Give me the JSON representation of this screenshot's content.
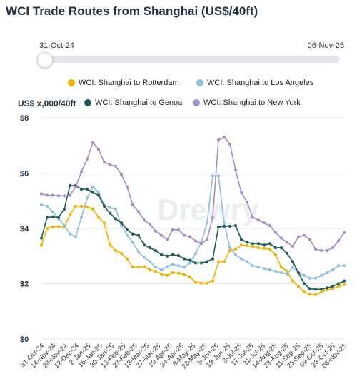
{
  "title": "WCI Trade Routes from Shanghai (US$/40ft)",
  "range_slider": {
    "start_label": "31-Oct-24",
    "end_label": "06-Nov-25"
  },
  "watermark": "Drewry",
  "chart_data": {
    "type": "line",
    "ylabel": "US$ x,000/40ft",
    "ylim": [
      0,
      8
    ],
    "yticks": [
      "$0",
      "$2",
      "$4",
      "$6",
      "$8"
    ],
    "grid": true,
    "legend_position": "top",
    "x": [
      "31-Oct-24",
      "07-Nov-24",
      "14-Nov-24",
      "21-Nov-24",
      "28-Nov-24",
      "05-Dec-24",
      "12-Dec-24",
      "19-Dec-24",
      "26-Dec-24",
      "02-Jan-25",
      "09-Jan-25",
      "16-Jan-25",
      "23-Jan-25",
      "30-Jan-25",
      "06-Feb-25",
      "13-Feb-25",
      "20-Feb-25",
      "27-Feb-25",
      "06-Mar-25",
      "13-Mar-25",
      "20-Mar-25",
      "27-Mar-25",
      "03-Apr-25",
      "10-Apr-25",
      "17-Apr-25",
      "24-Apr-25",
      "01-May-25",
      "08-May-25",
      "15-May-25",
      "22-May-25",
      "29-May-25",
      "05-Jun-25",
      "12-Jun-25",
      "19-Jun-25",
      "26-Jun-25",
      "03-Jul-25",
      "10-Jul-25",
      "17-Jul-25",
      "24-Jul-25",
      "31-Jul-25",
      "07-Aug-25",
      "14-Aug-25",
      "21-Aug-25",
      "28-Aug-25",
      "04-Sep-25",
      "11-Sep-25",
      "18-Sep-25",
      "25-Sep-25",
      "02-Oct-25",
      "09-Oct-25",
      "16-Oct-25",
      "23-Oct-25",
      "30-Oct-25",
      "06-Nov-25"
    ],
    "x_tick_labels": [
      "31-Oct-24",
      "14-Nov-24",
      "28-Nov-24",
      "12-Dec-24",
      "2-Jan-25",
      "16-Jan-25",
      "30-Jan-25",
      "13-Feb-25",
      "27-Feb-25",
      "13-Mar-25",
      "27-Mar-25",
      "10-Apr-25",
      "24-Apr-25",
      "8-May-25",
      "22-May-25",
      "5-Jun-25",
      "19-Jun-25",
      "3-Jul-25",
      "17-Jul-25",
      "31-Jul-25",
      "14-Aug-25",
      "28-Aug-25",
      "11-Sep-25",
      "25-Sep-25",
      "09-Oct-25",
      "23-Oct-25",
      "06-Nov-25"
    ],
    "series": [
      {
        "name": "WCI: Shanghai to Rotterdam",
        "color": "#f0b400",
        "values": [
          3.4,
          4.0,
          4.05,
          4.07,
          4.05,
          4.5,
          4.8,
          4.8,
          4.78,
          4.7,
          4.4,
          4.2,
          3.4,
          3.2,
          3.1,
          2.9,
          2.6,
          2.6,
          2.62,
          2.5,
          2.45,
          2.35,
          2.3,
          2.4,
          2.38,
          2.33,
          2.25,
          2.05,
          2.02,
          2.02,
          2.1,
          2.8,
          2.8,
          3.2,
          3.25,
          3.4,
          3.38,
          3.35,
          3.3,
          3.28,
          3.25,
          3.05,
          2.6,
          2.45,
          2.1,
          1.9,
          1.7,
          1.62,
          1.6,
          1.7,
          1.78,
          1.82,
          1.9,
          1.97
        ]
      },
      {
        "name": "WCI: Shanghai to Los Angeles",
        "color": "#8fbfdc",
        "values": [
          4.85,
          4.8,
          4.6,
          4.35,
          4.1,
          3.8,
          3.7,
          4.4,
          5.1,
          5.5,
          5.3,
          4.85,
          4.75,
          4.7,
          4.1,
          3.75,
          3.5,
          3.15,
          2.95,
          2.8,
          2.6,
          2.5,
          2.62,
          2.7,
          2.65,
          2.6,
          2.75,
          3.1,
          3.5,
          4.2,
          5.9,
          5.9,
          4.2,
          3.3,
          3.05,
          2.9,
          2.8,
          2.65,
          2.6,
          2.55,
          2.5,
          2.45,
          2.4,
          2.35,
          2.6,
          2.4,
          2.3,
          2.2,
          2.2,
          2.3,
          2.4,
          2.5,
          2.65,
          2.65
        ]
      },
      {
        "name": "WCI: Shanghai to Genoa",
        "color": "#1e5c5a",
        "values": [
          3.65,
          4.4,
          4.42,
          4.4,
          4.7,
          5.55,
          5.55,
          5.42,
          5.42,
          5.3,
          5.2,
          4.8,
          4.55,
          4.35,
          4.2,
          3.95,
          3.8,
          3.75,
          3.4,
          3.3,
          3.2,
          3.05,
          3.0,
          3.05,
          3.02,
          2.9,
          2.85,
          2.75,
          2.75,
          2.8,
          2.9,
          4.05,
          4.08,
          4.08,
          4.1,
          3.6,
          3.5,
          3.45,
          3.45,
          3.4,
          3.45,
          3.3,
          3.3,
          3.1,
          2.8,
          2.4,
          2.0,
          1.82,
          1.8,
          1.8,
          1.85,
          1.9,
          2.0,
          2.1
        ]
      },
      {
        "name": "WCI: Shanghai to New York",
        "color": "#a58dc7",
        "values": [
          5.25,
          5.2,
          5.2,
          5.18,
          5.18,
          5.2,
          5.5,
          6.05,
          6.5,
          7.1,
          6.85,
          6.4,
          6.3,
          6.25,
          5.95,
          5.5,
          4.85,
          4.6,
          4.3,
          4.15,
          3.9,
          3.75,
          3.6,
          3.95,
          3.95,
          3.75,
          3.7,
          3.55,
          3.45,
          3.6,
          4.4,
          7.2,
          7.3,
          7.05,
          6.1,
          5.3,
          4.95,
          4.4,
          4.3,
          4.2,
          4.1,
          3.85,
          3.65,
          3.5,
          3.35,
          3.7,
          3.75,
          3.6,
          3.25,
          3.2,
          3.2,
          3.3,
          3.55,
          3.85
        ]
      }
    ]
  }
}
